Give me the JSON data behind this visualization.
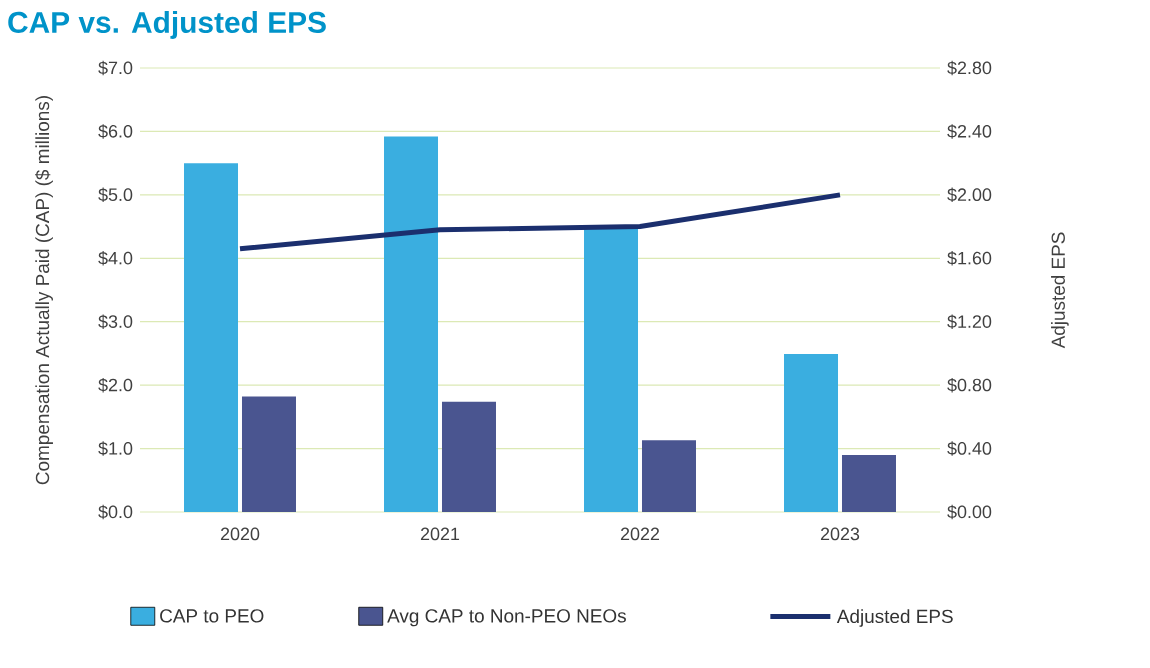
{
  "chart_data": {
    "type": "bar",
    "title": "CAP vs. Adjusted EPS",
    "ylabel": "Compensation Actually Paid (CAP) ($ millions)",
    "y2label": "Adjusted EPS",
    "categories": [
      "2020",
      "2021",
      "2022",
      "2023"
    ],
    "series": [
      {
        "name": "CAP to PEO",
        "color": "#3aaee0",
        "values": [
          5.5,
          5.92,
          4.47,
          2.49
        ]
      },
      {
        "name": "Avg CAP to Non-PEO NEOs",
        "color": "#4a5590",
        "values": [
          1.82,
          1.74,
          1.13,
          0.9
        ]
      },
      {
        "name": "Adjusted EPS",
        "type": "line",
        "axis": "y2",
        "color": "#1b2f6e",
        "values": [
          1.66,
          1.78,
          1.8,
          2.0
        ]
      }
    ],
    "ylim": [
      0,
      7
    ],
    "yticks": [
      {
        "value": 0,
        "label": "$0.0"
      },
      {
        "value": 1,
        "label": "$1.0"
      },
      {
        "value": 2,
        "label": "$2.0"
      },
      {
        "value": 3,
        "label": "$3.0"
      },
      {
        "value": 4,
        "label": "$4.0"
      },
      {
        "value": 5,
        "label": "$5.0"
      },
      {
        "value": 6,
        "label": "$6.0"
      },
      {
        "value": 7,
        "label": "$7.0"
      }
    ],
    "y2lim": [
      0,
      2.8
    ],
    "y2ticks": [
      {
        "value": 0,
        "label": "$0.00"
      },
      {
        "value": 0.4,
        "label": "$0.40"
      },
      {
        "value": 0.8,
        "label": "$0.80"
      },
      {
        "value": 1.2,
        "label": "$1.20"
      },
      {
        "value": 1.6,
        "label": "$1.60"
      },
      {
        "value": 2.0,
        "label": "$2.00"
      },
      {
        "value": 2.4,
        "label": "$2.40"
      },
      {
        "value": 2.8,
        "label": "$2.80"
      }
    ],
    "grid": "y",
    "legend": "bottom",
    "marker": "none",
    "line_style": "solid"
  }
}
